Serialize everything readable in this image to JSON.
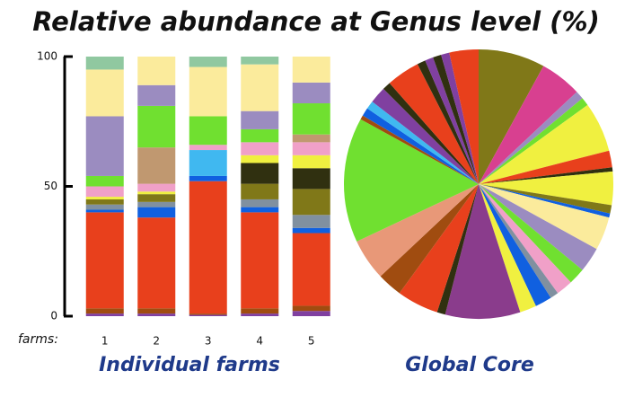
{
  "title": "Relative abundance at Genus level (%)",
  "chart_data": [
    {
      "type": "bar",
      "stacked": true,
      "title": "Individual farms",
      "xlabel": "farms:",
      "categories": [
        "1",
        "2",
        "3",
        "4",
        "5"
      ],
      "ylim": [
        0,
        100
      ],
      "yticks": [
        0,
        50,
        100
      ],
      "series": [
        {
          "color": "#8040a0",
          "values": [
            1,
            1,
            0.5,
            1,
            2
          ]
        },
        {
          "color": "#a04c10",
          "values": [
            2,
            2,
            0.5,
            2,
            2
          ]
        },
        {
          "color": "#e8401c",
          "values": [
            37,
            35,
            51,
            37,
            28
          ]
        },
        {
          "color": "#1060e0",
          "values": [
            1,
            4,
            2,
            2,
            2
          ]
        },
        {
          "color": "#40b8f0",
          "values": [
            0,
            0,
            10,
            0,
            0
          ]
        },
        {
          "color": "#8090a0",
          "values": [
            2,
            2,
            0,
            3,
            5
          ]
        },
        {
          "color": "#807818",
          "values": [
            2,
            3,
            0,
            6,
            10
          ]
        },
        {
          "color": "#303010",
          "values": [
            0,
            0,
            0,
            8,
            8
          ]
        },
        {
          "color": "#f0f040",
          "values": [
            1,
            1,
            0,
            3,
            5
          ]
        },
        {
          "color": "#f0a0c8",
          "values": [
            4,
            3,
            2,
            5,
            5
          ]
        },
        {
          "color": "#c09870",
          "values": [
            0,
            14,
            0,
            0,
            3
          ]
        },
        {
          "color": "#70e030",
          "values": [
            4,
            16,
            11,
            5,
            12
          ]
        },
        {
          "color": "#9b8cc0",
          "values": [
            23,
            8,
            0,
            7,
            8
          ]
        },
        {
          "color": "#fbeb9c",
          "values": [
            18,
            11,
            19,
            18,
            10
          ]
        },
        {
          "color": "#90c8a0",
          "values": [
            5,
            0,
            4,
            3,
            0
          ]
        }
      ]
    },
    {
      "type": "pie",
      "title": "Global Core",
      "values": [
        8,
        5,
        1,
        1,
        6,
        2,
        0.5,
        4,
        1,
        0.5,
        4,
        3,
        2,
        2,
        1,
        2,
        2,
        9,
        1,
        5,
        3,
        5,
        15,
        0.5,
        1,
        1,
        2,
        1,
        4,
        1,
        1,
        1,
        1,
        3.5
      ],
      "colors": [
        "#807818",
        "#d84090",
        "#9b8cc0",
        "#70e030",
        "#f0f040",
        "#e8401c",
        "#303010",
        "#f0f040",
        "#807818",
        "#1060e0",
        "#fbeb9c",
        "#9b8cc0",
        "#70e030",
        "#f0a0c8",
        "#8090a0",
        "#1060e0",
        "#f0f040",
        "#8a3c8c",
        "#303010",
        "#e8401c",
        "#a04c10",
        "#e89878",
        "#70e030",
        "#a04c10",
        "#1060e0",
        "#40b8f0",
        "#8040a0",
        "#303010",
        "#e8401c",
        "#303010",
        "#8040a0",
        "#303010",
        "#8040a0",
        "#e8401c"
      ]
    }
  ]
}
